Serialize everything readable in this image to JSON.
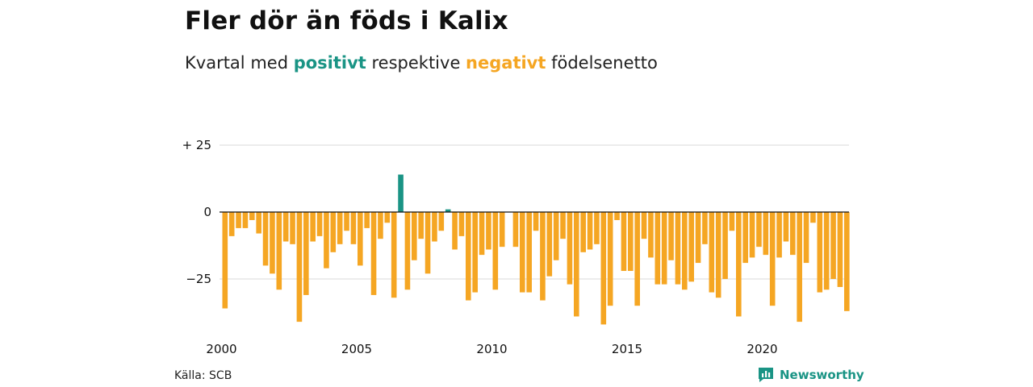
{
  "header": {
    "title": "Fler dör än föds i Kalix",
    "subtitle_pre": "Kvartal med ",
    "subtitle_pos": "positivt",
    "subtitle_mid": " respektive ",
    "subtitle_neg": "negativt",
    "subtitle_post": " födelsenetto"
  },
  "footer": {
    "source": "Källa: SCB",
    "brand": "Newsworthy",
    "brand_icon": "newsworthy-logo-icon"
  },
  "colors": {
    "positive": "#1a9485",
    "negative": "#f5a623",
    "grid": "#d9d9d9",
    "zero_line": "#111111"
  },
  "chart_data": {
    "type": "bar",
    "x_start": "2000 Q1",
    "x_ticks": [
      "2000",
      "2005",
      "2010",
      "2015",
      "2020"
    ],
    "y_ticks": [
      {
        "value": 25,
        "label": "+ 25"
      },
      {
        "value": 0,
        "label": "0"
      },
      {
        "value": -25,
        "label": "−25"
      }
    ],
    "ylim": [
      -43,
      25
    ],
    "grid": true,
    "values": [
      -36,
      -9,
      -6,
      -6,
      -3,
      -8,
      -20,
      -23,
      -29,
      -11,
      -12,
      -41,
      -31,
      -11,
      -9,
      -21,
      -15,
      -12,
      -7,
      -12,
      -20,
      -6,
      -31,
      -10,
      -4,
      -32,
      14,
      -29,
      -18,
      -10,
      -23,
      -11,
      -7,
      1,
      -14,
      -9,
      -33,
      -30,
      -16,
      -14,
      -29,
      -13,
      0,
      -13,
      -30,
      -30,
      -7,
      -33,
      -24,
      -18,
      -10,
      -27,
      -39,
      -15,
      -14,
      -12,
      -42,
      -35,
      -3,
      -22,
      -22,
      -35,
      -10,
      -17,
      -27,
      -27,
      -18,
      -27,
      -29,
      -26,
      -19,
      -12,
      -30,
      -32,
      -25,
      -7,
      -39,
      -19,
      -17,
      -13,
      -16,
      -35,
      -17,
      -11,
      -16,
      -41,
      -19,
      -4,
      -30,
      -29,
      -25,
      -28,
      -37
    ]
  }
}
